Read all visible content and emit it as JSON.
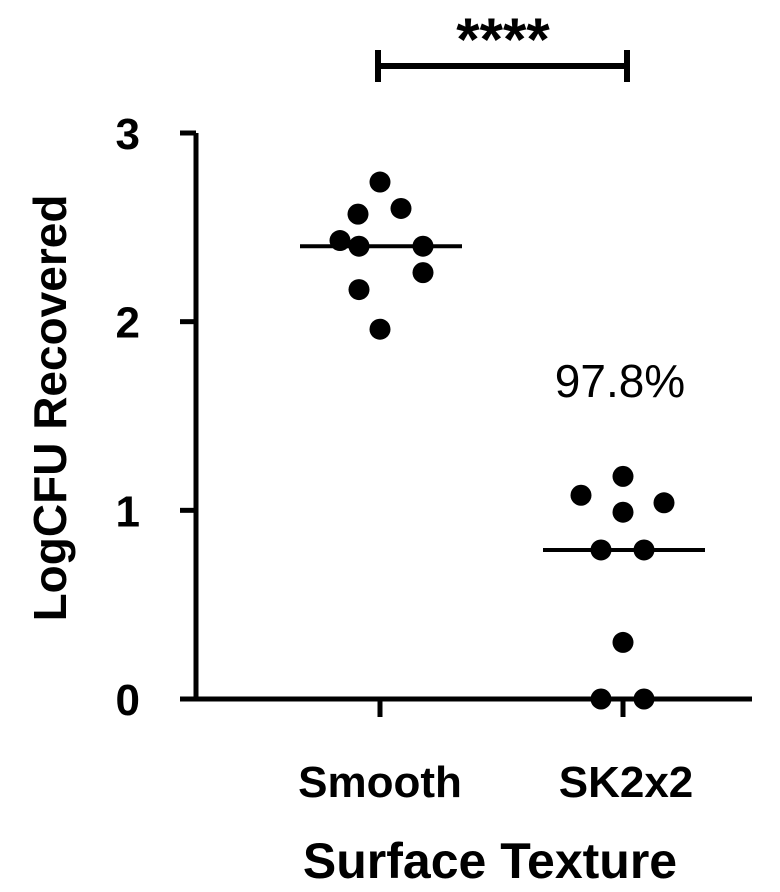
{
  "chart_data": {
    "type": "scatter",
    "xlabel": "Surface Texture",
    "ylabel": "LogCFU Recovered",
    "categories": [
      "Smooth",
      "SK2x2"
    ],
    "ylim": [
      0,
      3
    ],
    "yticks": [
      0,
      1,
      2,
      3
    ],
    "series": [
      {
        "category": "Smooth",
        "values": [
          2.74,
          2.57,
          2.6,
          2.43,
          2.4,
          2.4,
          2.26,
          2.17,
          1.96
        ],
        "median": 2.4
      },
      {
        "category": "SK2x2",
        "values": [
          1.18,
          1.08,
          1.04,
          0.99,
          0.79,
          0.79,
          0.3,
          0.0,
          0.0
        ],
        "median": 0.79
      }
    ],
    "annotations": {
      "significance": "****",
      "percent_reduction": "97.8%"
    },
    "point_color": "#000000"
  }
}
